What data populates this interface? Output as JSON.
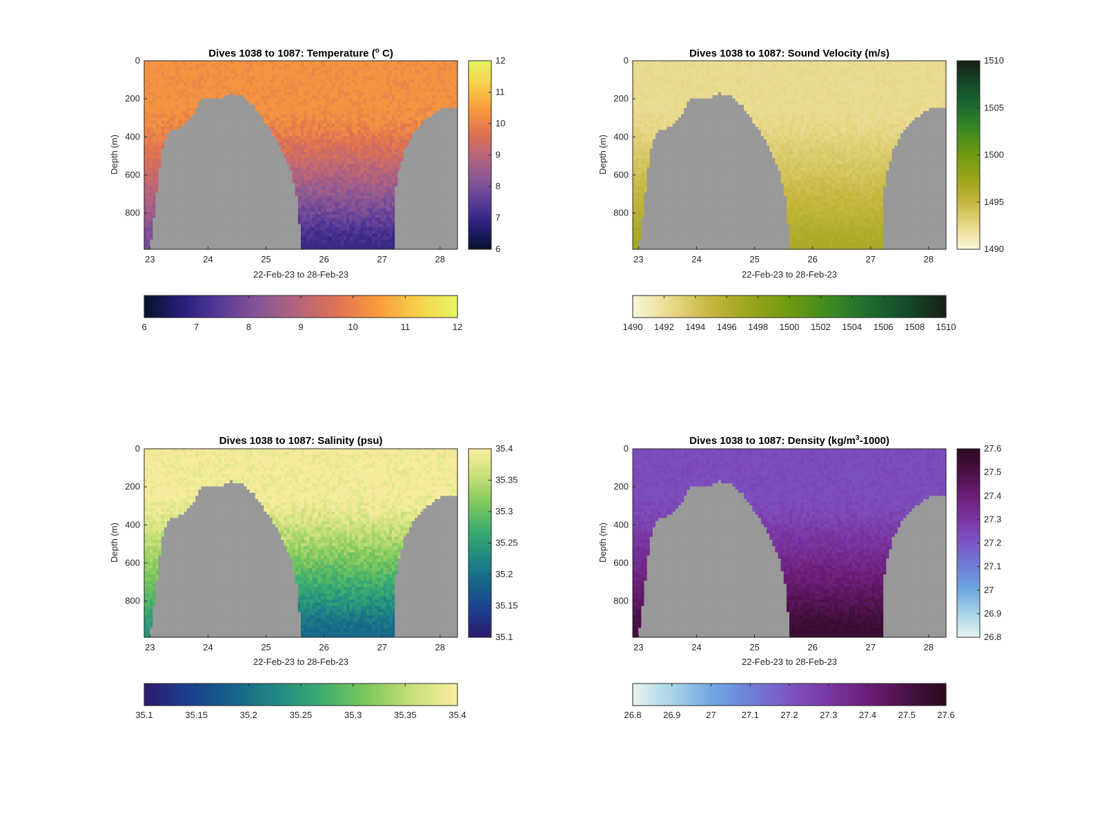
{
  "figure": {
    "background": "#ffffff",
    "seafloor_color": "#999999"
  },
  "chart_data": [
    {
      "type": "heatmap",
      "key": "temperature",
      "title": "Dives 1038 to 1087: Temperature (",
      "title_sup": "o",
      "title_after": " C)",
      "xlabel": "22-Feb-23 to 28-Feb-23",
      "ylabel": "Depth (m)",
      "x_ticks": [
        "23",
        "24",
        "25",
        "26",
        "27",
        "28"
      ],
      "x_range": [
        22.9,
        28.3
      ],
      "y_ticks": [
        "0",
        "200",
        "400",
        "600",
        "800"
      ],
      "ylim": [
        0,
        990
      ],
      "colorbar_side_ticks": [
        "6",
        "7",
        "8",
        "9",
        "10",
        "11",
        "12"
      ],
      "colorbar_bottom_ticks": [
        "6",
        "7",
        "8",
        "9",
        "10",
        "11",
        "12"
      ],
      "clim": [
        6,
        12
      ],
      "colormap": [
        "#04132a",
        "#2a1f7c",
        "#5a3c98",
        "#8a5794",
        "#b96579",
        "#e2744f",
        "#f99d3d",
        "#f7d04a",
        "#e6f762"
      ],
      "surface_value": 10.35,
      "deep_value": 7.0,
      "edge_deep_value": 7.9
    },
    {
      "type": "heatmap",
      "key": "sound_velocity",
      "title": "Dives 1038 to 1087: Sound Velocity (m/s)",
      "xlabel": "22-Feb-23 to 28-Feb-23",
      "ylabel": "Depth (m)",
      "x_ticks": [
        "23",
        "24",
        "25",
        "26",
        "27",
        "28"
      ],
      "x_range": [
        22.9,
        28.3
      ],
      "y_ticks": [
        "0",
        "200",
        "400",
        "600",
        "800"
      ],
      "ylim": [
        0,
        990
      ],
      "colorbar_side_ticks": [
        "1490",
        "1495",
        "1500",
        "1505",
        "1510"
      ],
      "colorbar_bottom_ticks": [
        "1490",
        "1492",
        "1494",
        "1496",
        "1498",
        "1500",
        "1502",
        "1504",
        "1506",
        "1508",
        "1510"
      ],
      "clim": [
        1490,
        1510
      ],
      "colormap": [
        "#fbf7d9",
        "#e8d889",
        "#c4b63e",
        "#9ba41a",
        "#6f9a10",
        "#3f8a20",
        "#1c6e31",
        "#164a2a",
        "#181f14"
      ],
      "surface_value": 1492.2,
      "deep_value": 1496.5,
      "edge_deep_value": 1497.0
    },
    {
      "type": "heatmap",
      "key": "salinity",
      "title": "Dives 1038 to 1087: Salinity (psu)",
      "xlabel": "22-Feb-23 to 28-Feb-23",
      "ylabel": "Depth (m)",
      "x_ticks": [
        "23",
        "24",
        "25",
        "26",
        "27",
        "28"
      ],
      "x_range": [
        22.9,
        28.3
      ],
      "y_ticks": [
        "0",
        "200",
        "400",
        "600",
        "800"
      ],
      "ylim": [
        0,
        990
      ],
      "colorbar_side_ticks": [
        "35.4",
        "35.35",
        "35.3",
        "35.25",
        "35.2",
        "35.15",
        "35.1"
      ],
      "colorbar_bottom_ticks": [
        "35.1",
        "35.15",
        "35.2",
        "35.25",
        "35.3",
        "35.35",
        "35.4"
      ],
      "clim": [
        35.1,
        35.4
      ],
      "colormap": [
        "#2a1a6e",
        "#1c3f8c",
        "#17648b",
        "#218a82",
        "#3fae6e",
        "#80c85c",
        "#c9e07a",
        "#fbeda0"
      ],
      "surface_value": 35.395,
      "deep_value": 35.19,
      "edge_deep_value": 35.24
    },
    {
      "type": "heatmap",
      "key": "density",
      "title": "Dives 1038 to 1087: Density (kg/m",
      "title_sup": "3",
      "title_after": "-1000)",
      "xlabel": "22-Feb-23 to 28-Feb-23",
      "ylabel": "Depth (m)",
      "x_ticks": [
        "23",
        "24",
        "25",
        "26",
        "27",
        "28"
      ],
      "x_range": [
        22.9,
        28.3
      ],
      "y_ticks": [
        "0",
        "200",
        "400",
        "600",
        "800"
      ],
      "ylim": [
        0,
        990
      ],
      "colorbar_side_ticks": [
        "27.6",
        "27.5",
        "27.4",
        "27.3",
        "27.2",
        "27.1",
        "27",
        "26.9",
        "26.8"
      ],
      "colorbar_bottom_ticks": [
        "26.8",
        "26.9",
        "27",
        "27.1",
        "27.2",
        "27.3",
        "27.4",
        "27.5",
        "27.6"
      ],
      "clim": [
        26.8,
        27.6
      ],
      "colormap": [
        "#e6f2f0",
        "#a9d4e6",
        "#6fa8e0",
        "#6e7fd6",
        "#7d56c4",
        "#7a36a2",
        "#6a1f78",
        "#4a1045",
        "#2a0a1e"
      ],
      "surface_value": 27.22,
      "deep_value": 27.55,
      "edge_deep_value": 27.52
    }
  ]
}
